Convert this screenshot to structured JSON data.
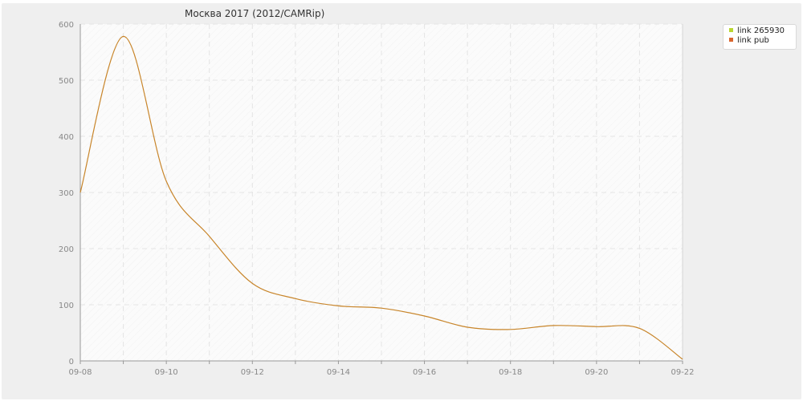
{
  "chart_data": {
    "type": "line",
    "title": "Москва 2017 (2012/CAMRip)",
    "xlabel": "",
    "ylabel": "",
    "x_tick_labels": [
      "09-08",
      "09-10",
      "09-12",
      "09-14",
      "09-16",
      "09-18",
      "09-20",
      "09-22"
    ],
    "x": [
      "09-08",
      "09-09",
      "09-10",
      "09-11",
      "09-12",
      "09-13",
      "09-14",
      "09-15",
      "09-16",
      "09-17",
      "09-18",
      "09-19",
      "09-20",
      "09-21",
      "09-22"
    ],
    "series": [
      {
        "name": "link pub",
        "color": "#c8852a",
        "values": [
          300,
          578,
          320,
          222,
          138,
          111,
          98,
          94,
          80,
          60,
          56,
          63,
          61,
          58,
          3
        ]
      }
    ],
    "ylim": [
      0,
      600
    ],
    "y_ticks": [
      0,
      100,
      200,
      300,
      400,
      500,
      600
    ],
    "grid": true,
    "legend_position": "top-right",
    "legend": [
      {
        "label": "link 265930",
        "color": "#b9d630"
      },
      {
        "label": "link pub",
        "color": "#d9662e"
      }
    ]
  }
}
